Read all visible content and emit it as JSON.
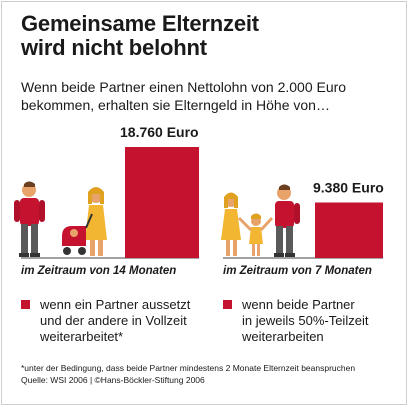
{
  "title": {
    "line1": "Gemeinsame Elternzeit",
    "line2": "wird nicht belohnt"
  },
  "subtitle": {
    "line1": "Wenn beide Partner einen Nettolohn von 2.000 Euro",
    "line2": "bekommen, erhalten sie Elterngeld in Höhe von…"
  },
  "chart_data": {
    "type": "bar",
    "categories": [
      "im Zeitraum von 14 Monaten",
      "im Zeitraum von 7 Monaten"
    ],
    "values": [
      18760,
      9380
    ],
    "value_labels": [
      "18.760 Euro",
      "9.380 Euro"
    ],
    "unit": "Euro",
    "ylim": [
      0,
      18760
    ],
    "bar_color": "#c4122f",
    "legend": [
      {
        "line1": "wenn ein Partner aussetzt",
        "line2": "und der andere in Vollzeit",
        "line3": "weiterarbeitet*"
      },
      {
        "line1": "wenn beide Partner",
        "line2": "in jeweils 50%-Teilzeit",
        "line3": "weiterarbeiten"
      }
    ]
  },
  "illustrations": {
    "left": "family-father-mother-baby-icon",
    "right": "family-parents-child-icon"
  },
  "footnote": {
    "line1": "*unter der Bedingung, dass beide Partner mindestens 2 Monate Elternzeit beanspruchen",
    "line2": "Quelle: WSI 2006 | ©Hans-Böckler-Stiftung 2006"
  }
}
